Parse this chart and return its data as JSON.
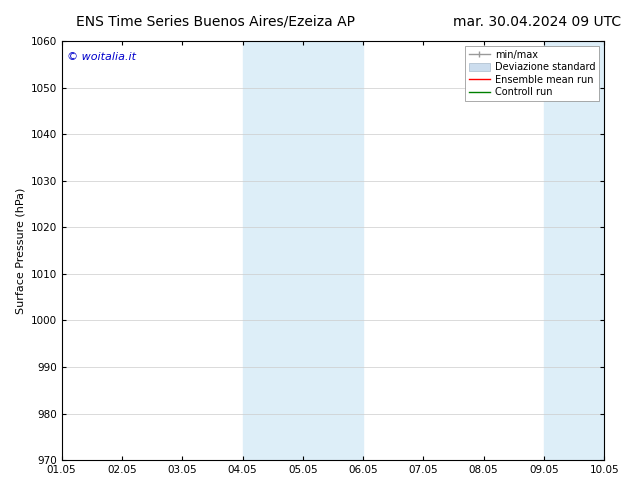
{
  "title_left": "ENS Time Series Buenos Aires/Ezeiza AP",
  "title_right": "mar. 30.04.2024 09 UTC",
  "ylabel": "Surface Pressure (hPa)",
  "ylim": [
    970,
    1060
  ],
  "yticks": [
    970,
    980,
    990,
    1000,
    1010,
    1020,
    1030,
    1040,
    1050,
    1060
  ],
  "xtick_labels": [
    "01.05",
    "02.05",
    "03.05",
    "04.05",
    "05.05",
    "06.05",
    "07.05",
    "08.05",
    "09.05",
    "10.05"
  ],
  "watermark": "© woitalia.it",
  "watermark_color": "#0000cc",
  "bg_color": "#ffffff",
  "plot_bg_color": "#ffffff",
  "shaded_regions": [
    {
      "xstart": 3.5,
      "xend": 4.5,
      "color": "#ddeef8"
    },
    {
      "xstart": 4.5,
      "xend": 5.5,
      "color": "#ddeef8"
    },
    {
      "xstart": 8.0,
      "xend": 8.5,
      "color": "#ddeef8"
    },
    {
      "xstart": 8.5,
      "xend": 9.0,
      "color": "#ddeef8"
    }
  ],
  "legend_items": [
    {
      "label": "min/max",
      "color": "#999999",
      "lw": 1.0
    },
    {
      "label": "Deviazione standard",
      "color": "#ccddee",
      "lw": 8
    },
    {
      "label": "Ensemble mean run",
      "color": "#ff0000",
      "lw": 1.0
    },
    {
      "label": "Controll run",
      "color": "#008000",
      "lw": 1.0
    }
  ],
  "title_fontsize": 10,
  "tick_fontsize": 7.5,
  "ylabel_fontsize": 8,
  "grid_color": "#cccccc",
  "spine_color": "#000000",
  "legend_fontsize": 7,
  "watermark_fontsize": 8
}
